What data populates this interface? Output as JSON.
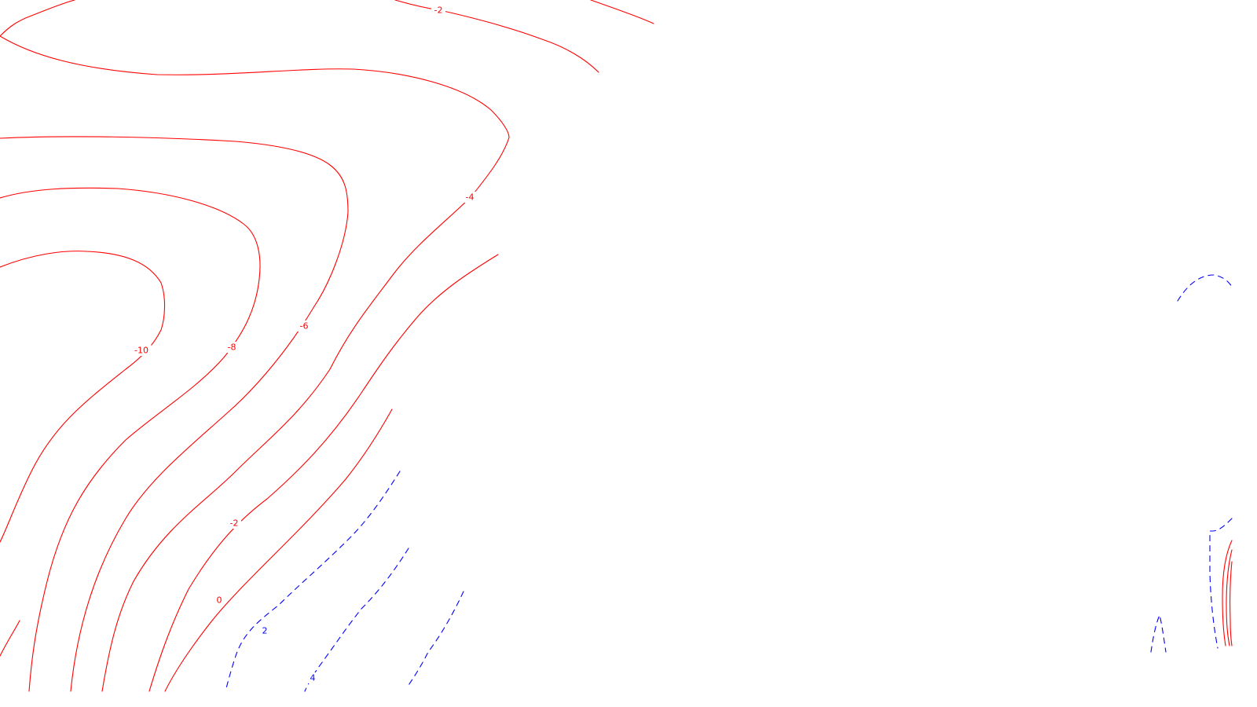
{
  "chart_data": {
    "type": "contour",
    "colors": {
      "negative": "#ff0000",
      "positive": "#0000ff",
      "background": "#ffffff"
    },
    "negative_line_style": "solid",
    "positive_line_style": "dashed",
    "levels": [
      {
        "value": -10,
        "label": "-10",
        "sign": "negative"
      },
      {
        "value": -8,
        "label": "-8",
        "sign": "negative"
      },
      {
        "value": -6,
        "label": "-6",
        "sign": "negative"
      },
      {
        "value": -4,
        "label": "-4",
        "sign": "negative"
      },
      {
        "value": -2,
        "label": "-2",
        "sign": "negative"
      },
      {
        "value": 0,
        "label": "0",
        "sign": "negative"
      },
      {
        "value": 2,
        "label": "2",
        "sign": "positive"
      },
      {
        "value": 4,
        "label": "4",
        "sign": "positive"
      }
    ],
    "axes_visible": false,
    "title": "",
    "xlabel": "",
    "ylabel": ""
  }
}
